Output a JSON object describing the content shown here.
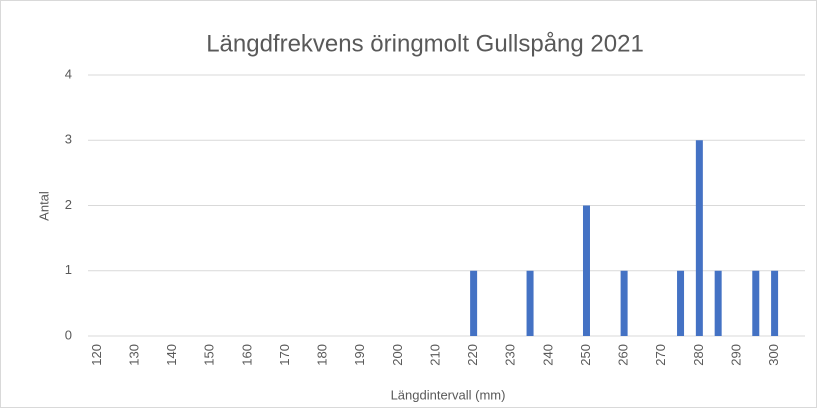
{
  "chart_data": {
    "type": "bar",
    "title": "Längdfrekvens öringmolt Gullspång 2021",
    "x_label": "Längdintervall (mm)",
    "y_label": "Antal",
    "categories": [
      "120",
      null,
      "130",
      null,
      "140",
      null,
      "150",
      null,
      "160",
      null,
      "170",
      null,
      "180",
      null,
      "190",
      null,
      "200",
      null,
      "210",
      null,
      "220",
      null,
      "230",
      null,
      "240",
      null,
      "250",
      null,
      "260",
      null,
      "270",
      null,
      "280",
      null,
      "290",
      null,
      "300"
    ],
    "values": [
      0,
      0,
      0,
      0,
      0,
      0,
      0,
      0,
      0,
      0,
      0,
      0,
      0,
      0,
      0,
      0,
      0,
      0,
      0,
      0,
      1,
      0,
      0,
      1,
      0,
      0,
      2,
      0,
      1,
      0,
      0,
      1,
      3,
      1,
      0,
      1,
      1
    ],
    "color": "#4472c4",
    "ylim": [
      0,
      4
    ],
    "yticks": [
      0,
      1,
      2,
      3,
      4
    ],
    "grid": true
  }
}
